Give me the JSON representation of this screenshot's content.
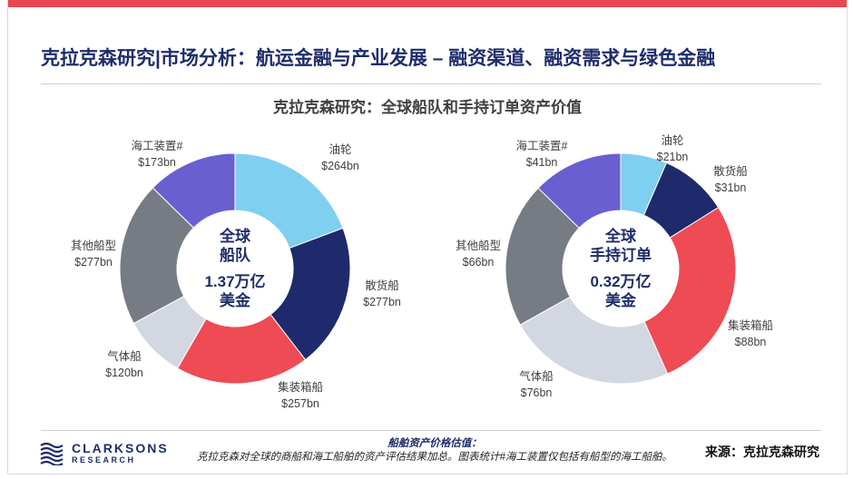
{
  "header": {
    "title": "克拉克森研究|市场分析：航运金融与产业发展 – 融资渠道、融资需求与绿色金融",
    "chart_title": "克拉克森研究：全球船队和手持订单资产价值"
  },
  "colors": {
    "accent_bar": "#e8474f",
    "title_navy": "#1f2d6b"
  },
  "chart_data": [
    {
      "type": "pie",
      "categories": [
        "油轮",
        "散货船",
        "集装箱船",
        "气体船",
        "其他船型",
        "海工装置#"
      ],
      "values": [
        264,
        277,
        257,
        120,
        277,
        173
      ],
      "value_labels": [
        "$264bn",
        "$277bn",
        "$257bn",
        "$120bn",
        "$277bn",
        "$173bn"
      ],
      "colors": [
        "#7fcff1",
        "#1e2a6c",
        "#ef4b55",
        "#d3d7e1",
        "#767b84",
        "#6a5fd0"
      ],
      "center_lines": [
        "全球",
        "船队",
        "1.37万亿",
        "美金"
      ]
    },
    {
      "type": "pie",
      "categories": [
        "油轮",
        "散货船",
        "集装箱船",
        "气体船",
        "其他船型",
        "海工装置#"
      ],
      "values": [
        21,
        31,
        88,
        76,
        66,
        41
      ],
      "value_labels": [
        "$21bn",
        "$31bn",
        "$88bn",
        "$76bn",
        "$66bn",
        "$41bn"
      ],
      "colors": [
        "#7fcff1",
        "#1e2a6c",
        "#ef4b55",
        "#d3d7e1",
        "#767b84",
        "#6a5fd0"
      ],
      "center_lines": [
        "全球",
        "手持订单",
        "0.32万亿",
        "美金"
      ]
    }
  ],
  "footer": {
    "logo_name": "CLARKSONS",
    "logo_sub": "RESEARCH",
    "note_title": "船舶资产价格估值：",
    "note_body": "克拉克森对全球的商船和海工船舶的资产评估结果加总。图表统计#海工装置仅包括有船型的海工船舶。",
    "source": "来源：克拉克森研究"
  }
}
